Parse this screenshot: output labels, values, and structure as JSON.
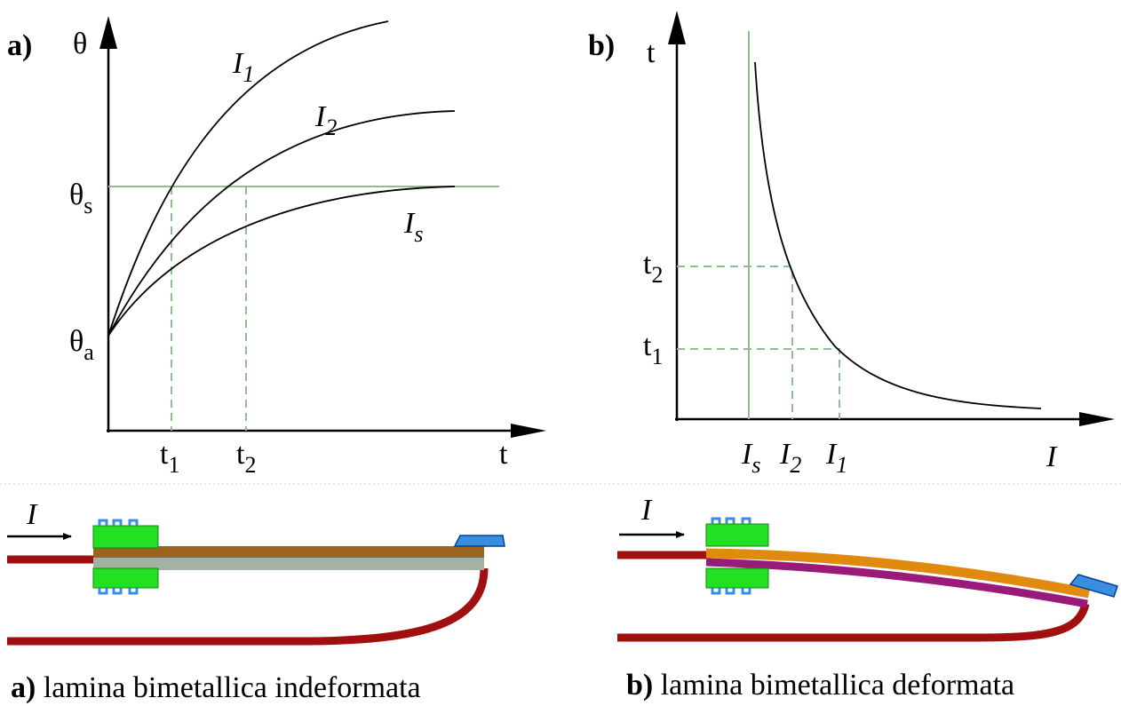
{
  "panel_a": {
    "label": "a)",
    "y_axis": "θ",
    "x_axis": "t",
    "theta_s": {
      "symbol": "θ",
      "sub": "s"
    },
    "theta_a": {
      "symbol": "θ",
      "sub": "a"
    },
    "curves": [
      {
        "symbol": "I",
        "sub": "1"
      },
      {
        "symbol": "I",
        "sub": "2"
      },
      {
        "symbol": "I",
        "sub": "s"
      }
    ],
    "ticks": [
      {
        "symbol": "t",
        "sub": "1"
      },
      {
        "symbol": "t",
        "sub": "2"
      }
    ]
  },
  "panel_b": {
    "label": "b)",
    "y_axis": "t",
    "x_axis": "I",
    "ticks_y": [
      {
        "symbol": "t",
        "sub": "2"
      },
      {
        "symbol": "t",
        "sub": "1"
      }
    ],
    "ticks_x": [
      {
        "symbol": "I",
        "sub": "s"
      },
      {
        "symbol": "I",
        "sub": "2"
      },
      {
        "symbol": "I",
        "sub": "1"
      }
    ]
  },
  "drawings": [
    {
      "label": "a)",
      "caption": "lamina bimetallica indeformata",
      "current": "I"
    },
    {
      "label": "b)",
      "caption": "lamina bimetallica deformata",
      "current": "I"
    }
  ]
}
